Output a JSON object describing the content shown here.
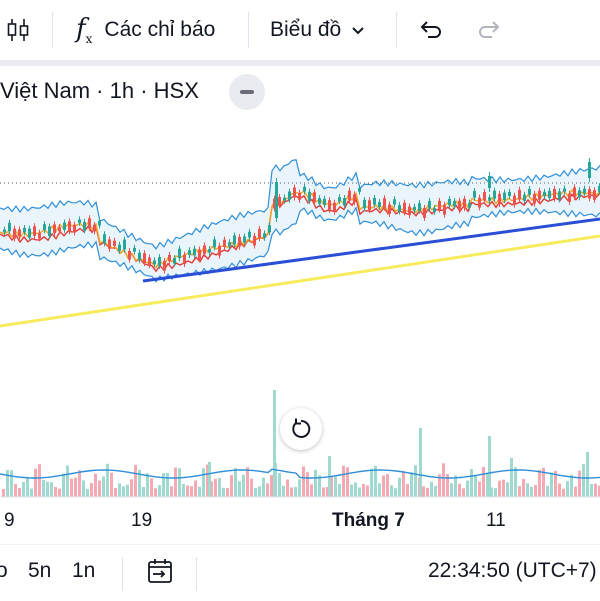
{
  "toolbar": {
    "indicators_label": "Các chỉ báo",
    "chart_label": "Biểu đồ",
    "icons": [
      "candles-icon",
      "function-icon",
      "chevron-down-icon",
      "undo-icon",
      "redo-icon"
    ]
  },
  "legend": {
    "text": "Việt Nam · 1h · HSX"
  },
  "xaxis": {
    "labels": [
      "9",
      "19",
      "Tháng 7",
      "11"
    ]
  },
  "bottombar": {
    "range_5d": "5n",
    "range_1d": "1n",
    "range_partial": "o",
    "clock": "22:34:50 (UTC+7)"
  },
  "colors": {
    "up": "#26a69a",
    "down": "#ef5350",
    "bb": "#2f8fd8",
    "ma_orange": "#f5a623",
    "ma_red": "#e53935",
    "trend_blue": "#2a4fd6",
    "trend_yellow": "#f7ec5e",
    "vol_up": "#9fd9cf",
    "vol_down": "#f4a9b3"
  }
}
